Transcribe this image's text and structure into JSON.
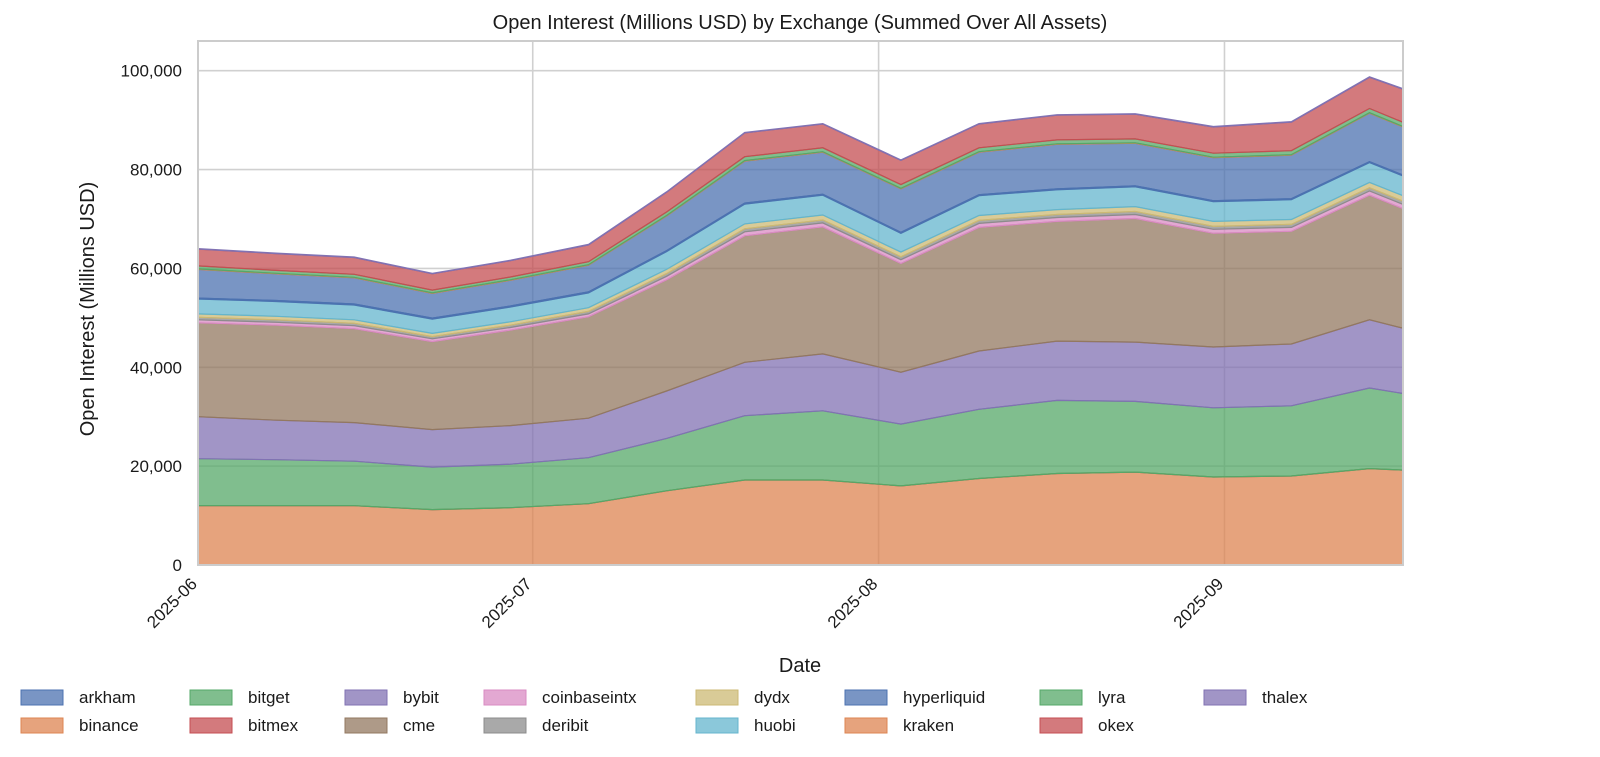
{
  "chart_data": {
    "type": "area",
    "stacked": true,
    "title": "Open Interest (Millions USD) by Exchange (Summed Over All Assets)",
    "xlabel": "Date",
    "ylabel": "Open Interest (Millions USD)",
    "xlim": [
      "2025-06-01",
      "2025-09-17"
    ],
    "ylim": [
      0,
      106000
    ],
    "x_ticks": [
      "2025-06",
      "2025-07",
      "2025-08",
      "2025-09"
    ],
    "y_ticks": [
      "0",
      "20,000",
      "40,000",
      "60,000",
      "80,000",
      "100,000"
    ],
    "grid": true,
    "legend_position": "bottom",
    "x": [
      "2025-06-01",
      "2025-06-08",
      "2025-06-15",
      "2025-06-22",
      "2025-06-29",
      "2025-07-06",
      "2025-07-13",
      "2025-07-20",
      "2025-07-27",
      "2025-08-03",
      "2025-08-10",
      "2025-08-17",
      "2025-08-24",
      "2025-08-31",
      "2025-09-07",
      "2025-09-14",
      "2025-09-17"
    ],
    "series": [
      {
        "name": "binance",
        "color": "#dd8452",
        "values": [
          12000,
          12000,
          12000,
          11200,
          11600,
          12400,
          15000,
          17200,
          17200,
          16000,
          17500,
          18500,
          18800,
          17800,
          18000,
          19500,
          19200
        ]
      },
      {
        "name": "bitmex",
        "color": "#c44e52",
        "values": [
          0,
          0,
          0,
          0,
          0,
          0,
          0,
          0,
          0,
          0,
          0,
          0,
          0,
          0,
          0,
          0,
          0
        ]
      },
      {
        "name": "bitget",
        "color": "#55a868",
        "values": [
          9500,
          9300,
          9000,
          8600,
          8800,
          9300,
          10600,
          13000,
          14000,
          12500,
          14000,
          14800,
          14300,
          14000,
          14200,
          16300,
          15500
        ]
      },
      {
        "name": "bybit",
        "color": "#8172b3",
        "values": [
          8500,
          8000,
          7800,
          7600,
          7800,
          8000,
          9600,
          10800,
          11500,
          10500,
          11800,
          12000,
          12000,
          12300,
          12500,
          13800,
          13200
        ]
      },
      {
        "name": "cme",
        "color": "#937860",
        "values": [
          19000,
          19200,
          19000,
          17800,
          19300,
          20500,
          22500,
          25600,
          25700,
          22000,
          25000,
          24200,
          25000,
          23000,
          22800,
          25200,
          24200
        ]
      },
      {
        "name": "coinbaseintx",
        "color": "#da8bc3",
        "values": [
          600,
          600,
          600,
          550,
          550,
          600,
          700,
          800,
          800,
          750,
          800,
          800,
          800,
          800,
          800,
          850,
          850
        ]
      },
      {
        "name": "deribit",
        "color": "#8c8c8c",
        "values": [
          500,
          500,
          500,
          450,
          450,
          500,
          550,
          600,
          600,
          600,
          600,
          600,
          600,
          600,
          600,
          650,
          650
        ]
      },
      {
        "name": "dydx",
        "color": "#ccb974",
        "values": [
          700,
          700,
          700,
          650,
          700,
          750,
          850,
          1000,
          1000,
          950,
          1000,
          1000,
          1000,
          1000,
          1000,
          1100,
          1100
        ]
      },
      {
        "name": "huobi",
        "color": "#64b5cd",
        "values": [
          3000,
          3000,
          3000,
          2900,
          3000,
          3000,
          3600,
          4000,
          4000,
          3800,
          4000,
          4000,
          4000,
          4000,
          4000,
          4000,
          4000
        ]
      },
      {
        "name": "arkham",
        "color": "#4c72b0",
        "values": [
          200,
          200,
          200,
          200,
          200,
          200,
          200,
          200,
          200,
          200,
          200,
          200,
          200,
          200,
          200,
          200,
          200
        ]
      },
      {
        "name": "hyperliquid",
        "color": "#4c72b0",
        "values": [
          5800,
          5400,
          5300,
          5000,
          5200,
          5400,
          7000,
          8500,
          8500,
          8800,
          8600,
          9000,
          8600,
          8700,
          8800,
          9800,
          9700
        ]
      },
      {
        "name": "kraken",
        "color": "#dd8452",
        "values": [
          100,
          100,
          100,
          100,
          100,
          100,
          100,
          100,
          100,
          100,
          100,
          100,
          100,
          100,
          100,
          100,
          100
        ]
      },
      {
        "name": "lyra",
        "color": "#55a868",
        "values": [
          600,
          600,
          600,
          550,
          550,
          600,
          700,
          800,
          800,
          750,
          800,
          800,
          800,
          800,
          800,
          850,
          850
        ]
      },
      {
        "name": "okex",
        "color": "#c44e52",
        "values": [
          3400,
          3400,
          3400,
          3300,
          3300,
          3400,
          4000,
          4800,
          4800,
          4900,
          4800,
          5000,
          5000,
          5300,
          5800,
          6300,
          6700
        ]
      },
      {
        "name": "thalex",
        "color": "#8172b3",
        "values": [
          100,
          100,
          100,
          100,
          100,
          100,
          100,
          100,
          100,
          100,
          100,
          100,
          100,
          100,
          100,
          100,
          100
        ]
      }
    ],
    "legend_order": [
      "arkham",
      "binance",
      "bitget",
      "bitmex",
      "bybit",
      "cme",
      "coinbaseintx",
      "deribit",
      "dydx",
      "huobi",
      "hyperliquid",
      "kraken",
      "lyra",
      "okex",
      "thalex"
    ]
  }
}
